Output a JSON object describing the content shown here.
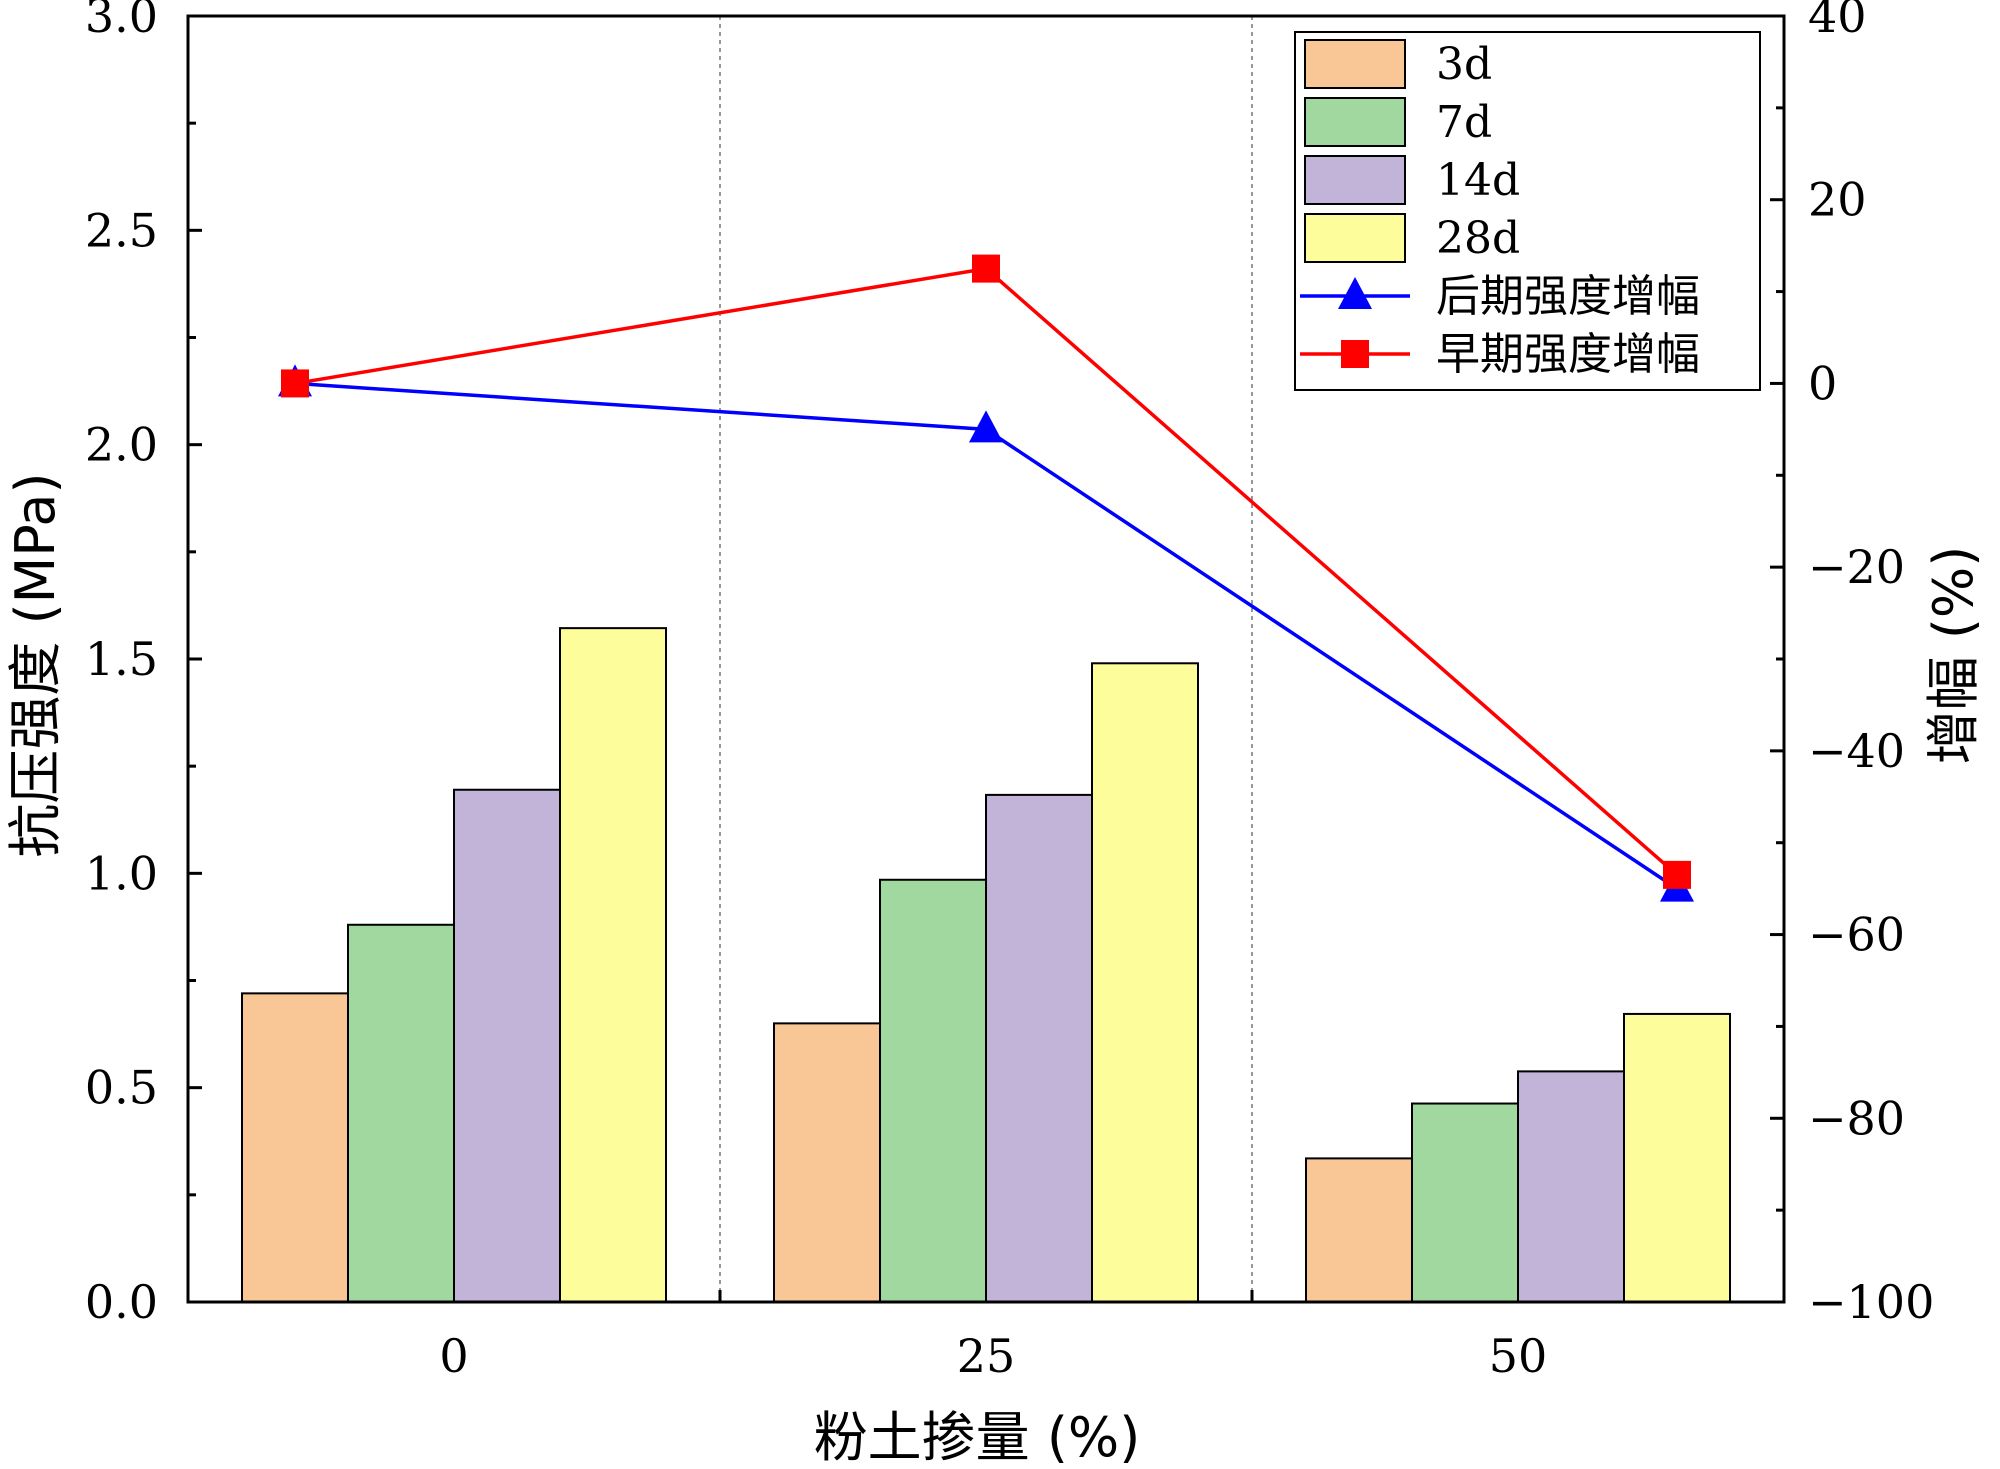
{
  "chart_data": {
    "type": "bar",
    "xlabel": "粉土掺量 (%)",
    "ylabel": "抗压强度 (MPa)",
    "y2label": "增幅 (%)",
    "categories": [
      "0",
      "25",
      "50"
    ],
    "ylim": [
      0,
      3.0
    ],
    "yticks": [
      "0.0",
      "0.5",
      "1.0",
      "1.5",
      "2.0",
      "2.5",
      "3.0"
    ],
    "y2lim": [
      -100,
      40
    ],
    "y2ticks": [
      "−100",
      "−80",
      "−60",
      "−40",
      "−20",
      "0",
      "20",
      "40"
    ],
    "grid": "vertical dashed separators between categories",
    "legend_position": "top-right",
    "series": [
      {
        "name": "3d",
        "values": [
          0.72,
          0.65,
          0.335
        ],
        "color": "#F9C795"
      },
      {
        "name": "7d",
        "values": [
          0.88,
          0.985,
          0.463
        ],
        "color": "#A0D8A0"
      },
      {
        "name": "14d",
        "values": [
          1.195,
          1.183,
          0.538
        ],
        "color": "#C2B3D8"
      },
      {
        "name": "28d",
        "values": [
          1.572,
          1.49,
          0.672
        ],
        "color": "#FDFD9C"
      }
    ],
    "lines": [
      {
        "name": "后期强度增幅",
        "axis": "right",
        "marker": "triangle",
        "color": "#0000FF",
        "values": [
          0,
          -5,
          -55
        ]
      },
      {
        "name": "早期强度增幅",
        "axis": "right",
        "marker": "square",
        "color": "#FF0000",
        "values": [
          0,
          12.5,
          -53.5
        ]
      }
    ]
  }
}
